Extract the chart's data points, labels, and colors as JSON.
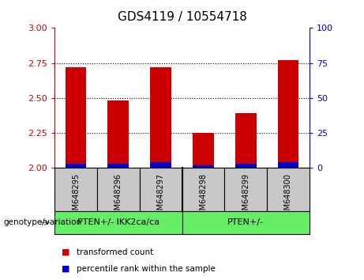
{
  "title": "GDS4119 / 10554718",
  "samples": [
    "GSM648295",
    "GSM648296",
    "GSM648297",
    "GSM648298",
    "GSM648299",
    "GSM648300"
  ],
  "red_values": [
    2.72,
    2.48,
    2.72,
    2.25,
    2.39,
    2.77
  ],
  "blue_values": [
    0.03,
    0.03,
    0.04,
    0.02,
    0.03,
    0.04
  ],
  "ylim_left": [
    2.0,
    3.0
  ],
  "ylim_right": [
    0,
    100
  ],
  "yticks_left": [
    2.0,
    2.25,
    2.5,
    2.75,
    3.0
  ],
  "yticks_right": [
    0,
    25,
    50,
    75,
    100
  ],
  "groups": [
    {
      "label": "PTEN+/- IKK2ca/ca",
      "color": "#66EE66"
    },
    {
      "label": "PTEN+/-",
      "color": "#66EE66"
    }
  ],
  "bar_width": 0.5,
  "red_color": "#CC0000",
  "blue_color": "#0000CC",
  "gray_bg": "#C8C8C8",
  "legend_red": "transformed count",
  "legend_blue": "percentile rank within the sample",
  "genotype_label": "genotype/variation",
  "left_tick_color": "#CC0000",
  "right_tick_color": "#0000CC"
}
